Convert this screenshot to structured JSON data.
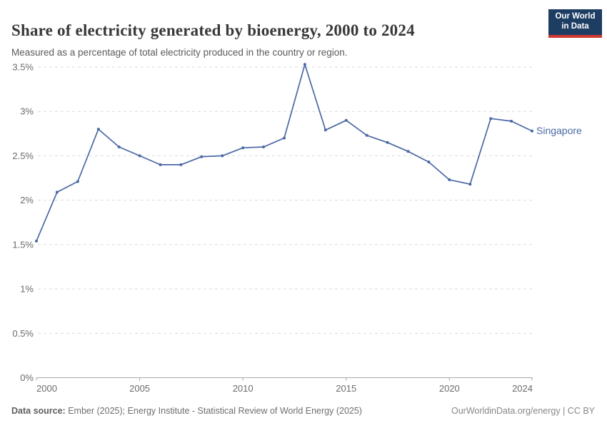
{
  "header": {
    "title": "Share of electricity generated by bioenergy, 2000 to 2024",
    "subtitle": "Measured as a percentage of total electricity produced in the country or region.",
    "logo": {
      "line1": "Our World",
      "line2": "in Data",
      "bg_color": "#1d3d63",
      "stripe_color": "#d13832"
    }
  },
  "chart_data": {
    "type": "line",
    "title": "Share of electricity generated by bioenergy, 2000 to 2024",
    "xlabel": "",
    "ylabel": "",
    "x": [
      2000,
      2001,
      2002,
      2003,
      2004,
      2005,
      2006,
      2007,
      2008,
      2009,
      2010,
      2011,
      2012,
      2013,
      2014,
      2015,
      2016,
      2017,
      2018,
      2019,
      2020,
      2021,
      2022,
      2023,
      2024
    ],
    "series": [
      {
        "name": "Singapore",
        "color": "#4a68a4",
        "values": [
          1.54,
          2.09,
          2.21,
          2.8,
          2.6,
          2.5,
          2.4,
          2.4,
          2.49,
          2.5,
          2.59,
          2.6,
          2.7,
          3.53,
          2.79,
          2.9,
          2.73,
          2.65,
          2.55,
          2.43,
          2.23,
          2.18,
          2.92,
          2.89,
          2.78
        ]
      }
    ],
    "xlim": [
      2000,
      2024
    ],
    "ylim": [
      0,
      3.5
    ],
    "xticks": [
      2000,
      2005,
      2010,
      2015,
      2020,
      2024
    ],
    "yticks": [
      0,
      0.5,
      1,
      1.5,
      2,
      2.5,
      3,
      3.5
    ],
    "ytick_format": "percent",
    "grid": "horizontal-dashed",
    "grid_color": "#dcdcdc",
    "axis_color": "#a8a8a8",
    "tick_label_color": "#6b6b6b",
    "legend_position": "end-of-line-label"
  },
  "footer": {
    "source_label": "Data source:",
    "source_text": " Ember (2025); Energy Institute - Statistical Review of World Energy (2025)",
    "credit": "OurWorldinData.org/energy | CC BY"
  }
}
